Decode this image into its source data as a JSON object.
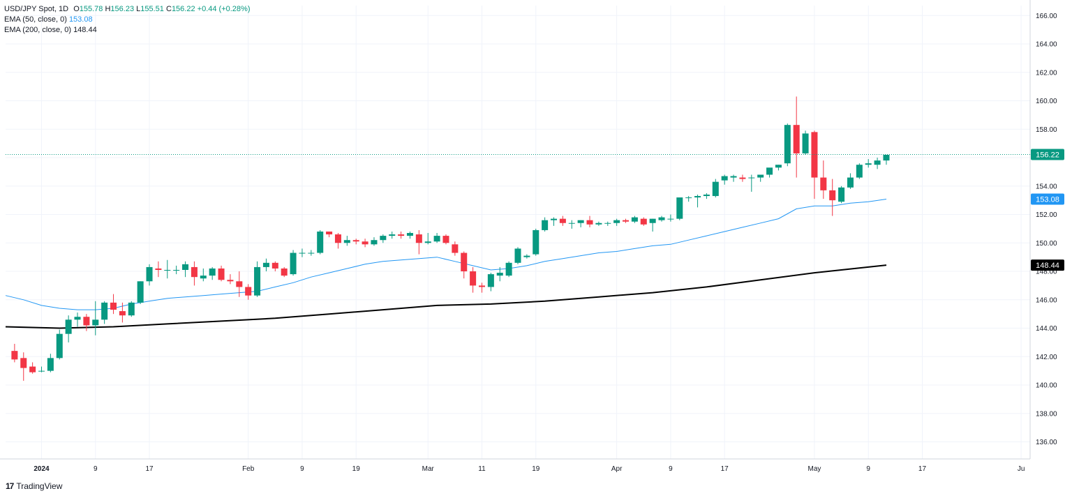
{
  "header": {
    "symbol": "USD/JPY Spot, 1D",
    "o_label": "O",
    "o": "155.78",
    "h_label": "H",
    "h": "156.23",
    "l_label": "L",
    "l": "155.51",
    "c_label": "C",
    "c": "156.22",
    "change": "+0.44 (+0.28%)"
  },
  "indicators": {
    "ema50_label": "EMA (50, close, 0)",
    "ema50_value": "153.08",
    "ema200_label": "EMA (200, close, 0)",
    "ema200_value": "148.44"
  },
  "branding": {
    "name": "TradingView",
    "mark": "17"
  },
  "colors": {
    "up": "#089981",
    "down": "#f23645",
    "ema50": "#2196f3",
    "ema200": "#000000",
    "grid": "#f0f3fa"
  },
  "chart_data": {
    "type": "candlestick",
    "title": "USD/JPY Spot, 1D",
    "ylim": [
      134.8,
      166.7
    ],
    "y_ticks": [
      "136.00",
      "138.00",
      "140.00",
      "142.00",
      "144.00",
      "146.00",
      "148.00",
      "150.00",
      "152.00",
      "154.00",
      "156.00",
      "158.00",
      "160.00",
      "162.00",
      "164.00",
      "166.00"
    ],
    "x_ticks": [
      {
        "label": "2024",
        "x": 44,
        "bold": true
      },
      {
        "label": "9",
        "x": 50
      },
      {
        "label": "17",
        "x": 56
      },
      {
        "label": "Feb",
        "x": 67
      },
      {
        "label": "9",
        "x": 73
      },
      {
        "label": "19",
        "x": 79
      },
      {
        "label": "Mar",
        "x": 87
      },
      {
        "label": "11",
        "x": 93
      },
      {
        "label": "19",
        "x": 99
      },
      {
        "label": "Apr",
        "x": 108
      },
      {
        "label": "9",
        "x": 114
      },
      {
        "label": "17",
        "x": 120
      },
      {
        "label": "May",
        "x": 130
      },
      {
        "label": "9",
        "x": 136
      },
      {
        "label": "17",
        "x": 142
      },
      {
        "label": "Ju",
        "x": 153
      }
    ],
    "last_price": "156.22",
    "ema50_last": "153.08",
    "ema200_last": "148.44",
    "candles": [
      {
        "x": 41,
        "o": 142.4,
        "h": 142.9,
        "l": 141.6,
        "c": 141.8
      },
      {
        "x": 42,
        "o": 141.9,
        "h": 142.3,
        "l": 140.3,
        "c": 141.2
      },
      {
        "x": 43,
        "o": 141.3,
        "h": 141.6,
        "l": 140.8,
        "c": 140.9
      },
      {
        "x": 44,
        "o": 141.0,
        "h": 141.3,
        "l": 140.9,
        "c": 141.0
      },
      {
        "x": 45,
        "o": 141.0,
        "h": 142.2,
        "l": 140.9,
        "c": 141.9
      },
      {
        "x": 46,
        "o": 141.9,
        "h": 143.9,
        "l": 141.8,
        "c": 143.6
      },
      {
        "x": 47,
        "o": 143.6,
        "h": 144.9,
        "l": 143.0,
        "c": 144.6
      },
      {
        "x": 48,
        "o": 144.6,
        "h": 145.1,
        "l": 144.1,
        "c": 144.8
      },
      {
        "x": 49,
        "o": 144.8,
        "h": 145.0,
        "l": 143.8,
        "c": 144.2
      },
      {
        "x": 50,
        "o": 144.2,
        "h": 145.9,
        "l": 143.5,
        "c": 144.6
      },
      {
        "x": 51,
        "o": 144.6,
        "h": 145.9,
        "l": 144.3,
        "c": 145.8
      },
      {
        "x": 52,
        "o": 145.8,
        "h": 146.4,
        "l": 145.0,
        "c": 145.3
      },
      {
        "x": 53,
        "o": 145.2,
        "h": 145.8,
        "l": 144.4,
        "c": 144.9
      },
      {
        "x": 54,
        "o": 144.9,
        "h": 145.9,
        "l": 144.8,
        "c": 145.8
      },
      {
        "x": 55,
        "o": 145.8,
        "h": 147.3,
        "l": 145.7,
        "c": 147.3
      },
      {
        "x": 56,
        "o": 147.3,
        "h": 148.5,
        "l": 147.0,
        "c": 148.3
      },
      {
        "x": 57,
        "o": 148.2,
        "h": 148.7,
        "l": 147.6,
        "c": 148.1
      },
      {
        "x": 58,
        "o": 148.1,
        "h": 148.8,
        "l": 147.5,
        "c": 148.1
      },
      {
        "x": 59,
        "o": 148.1,
        "h": 148.4,
        "l": 147.8,
        "c": 148.1
      },
      {
        "x": 60,
        "o": 148.1,
        "h": 148.7,
        "l": 147.6,
        "c": 148.5
      },
      {
        "x": 61,
        "o": 148.3,
        "h": 148.7,
        "l": 147.0,
        "c": 147.6
      },
      {
        "x": 62,
        "o": 147.5,
        "h": 148.2,
        "l": 147.3,
        "c": 147.7
      },
      {
        "x": 63,
        "o": 147.7,
        "h": 148.3,
        "l": 147.4,
        "c": 148.2
      },
      {
        "x": 64,
        "o": 148.2,
        "h": 148.4,
        "l": 147.3,
        "c": 147.4
      },
      {
        "x": 65,
        "o": 147.4,
        "h": 147.8,
        "l": 147.1,
        "c": 147.3
      },
      {
        "x": 66,
        "o": 147.3,
        "h": 148.0,
        "l": 146.2,
        "c": 146.9
      },
      {
        "x": 67,
        "o": 146.9,
        "h": 147.1,
        "l": 146.0,
        "c": 146.3
      },
      {
        "x": 68,
        "o": 146.3,
        "h": 148.7,
        "l": 146.2,
        "c": 148.3
      },
      {
        "x": 69,
        "o": 148.3,
        "h": 148.9,
        "l": 148.0,
        "c": 148.6
      },
      {
        "x": 70,
        "o": 148.6,
        "h": 148.7,
        "l": 148.0,
        "c": 148.2
      },
      {
        "x": 71,
        "o": 148.2,
        "h": 148.3,
        "l": 147.6,
        "c": 147.7
      },
      {
        "x": 72,
        "o": 147.8,
        "h": 149.5,
        "l": 147.7,
        "c": 149.3
      },
      {
        "x": 73,
        "o": 149.3,
        "h": 149.6,
        "l": 149.0,
        "c": 149.3
      },
      {
        "x": 74,
        "o": 149.3,
        "h": 149.5,
        "l": 149.1,
        "c": 149.3
      },
      {
        "x": 75,
        "o": 149.3,
        "h": 150.9,
        "l": 149.2,
        "c": 150.8
      },
      {
        "x": 76,
        "o": 150.8,
        "h": 150.8,
        "l": 150.4,
        "c": 150.6
      },
      {
        "x": 77,
        "o": 150.6,
        "h": 150.7,
        "l": 149.6,
        "c": 150.0
      },
      {
        "x": 78,
        "o": 150.0,
        "h": 150.5,
        "l": 149.8,
        "c": 150.2
      },
      {
        "x": 79,
        "o": 150.2,
        "h": 150.3,
        "l": 149.9,
        "c": 150.1
      },
      {
        "x": 80,
        "o": 150.1,
        "h": 150.3,
        "l": 149.7,
        "c": 149.9
      },
      {
        "x": 81,
        "o": 149.9,
        "h": 150.4,
        "l": 149.8,
        "c": 150.2
      },
      {
        "x": 82,
        "o": 150.2,
        "h": 150.6,
        "l": 150.0,
        "c": 150.5
      },
      {
        "x": 83,
        "o": 150.5,
        "h": 150.8,
        "l": 150.3,
        "c": 150.6
      },
      {
        "x": 84,
        "o": 150.6,
        "h": 150.8,
        "l": 150.3,
        "c": 150.5
      },
      {
        "x": 85,
        "o": 150.5,
        "h": 150.8,
        "l": 150.3,
        "c": 150.7
      },
      {
        "x": 86,
        "o": 150.6,
        "h": 150.9,
        "l": 149.2,
        "c": 150.0
      },
      {
        "x": 87,
        "o": 150.0,
        "h": 150.7,
        "l": 149.9,
        "c": 150.1
      },
      {
        "x": 88,
        "o": 150.1,
        "h": 150.7,
        "l": 150.0,
        "c": 150.5
      },
      {
        "x": 89,
        "o": 150.5,
        "h": 150.6,
        "l": 149.9,
        "c": 150.0
      },
      {
        "x": 90,
        "o": 149.9,
        "h": 150.1,
        "l": 149.1,
        "c": 149.3
      },
      {
        "x": 91,
        "o": 149.3,
        "h": 149.4,
        "l": 147.5,
        "c": 148.0
      },
      {
        "x": 92,
        "o": 148.0,
        "h": 148.3,
        "l": 146.5,
        "c": 147.0
      },
      {
        "x": 93,
        "o": 147.0,
        "h": 147.2,
        "l": 146.5,
        "c": 146.9
      },
      {
        "x": 94,
        "o": 146.9,
        "h": 147.9,
        "l": 146.6,
        "c": 147.8
      },
      {
        "x": 95,
        "o": 147.7,
        "h": 148.3,
        "l": 147.3,
        "c": 147.9
      },
      {
        "x": 96,
        "o": 147.7,
        "h": 148.7,
        "l": 147.6,
        "c": 148.6
      },
      {
        "x": 97,
        "o": 148.6,
        "h": 149.7,
        "l": 148.5,
        "c": 149.6
      },
      {
        "x": 98,
        "o": 149.0,
        "h": 149.2,
        "l": 148.9,
        "c": 149.1
      },
      {
        "x": 99,
        "o": 149.2,
        "h": 151.0,
        "l": 149.1,
        "c": 150.9
      },
      {
        "x": 100,
        "o": 150.9,
        "h": 151.8,
        "l": 150.8,
        "c": 151.6
      },
      {
        "x": 101,
        "o": 151.6,
        "h": 151.8,
        "l": 151.2,
        "c": 151.7
      },
      {
        "x": 102,
        "o": 151.7,
        "h": 151.9,
        "l": 151.2,
        "c": 151.4
      },
      {
        "x": 103,
        "o": 151.4,
        "h": 151.6,
        "l": 151.0,
        "c": 151.4
      },
      {
        "x": 104,
        "o": 151.4,
        "h": 151.6,
        "l": 151.1,
        "c": 151.6
      },
      {
        "x": 105,
        "o": 151.6,
        "h": 151.9,
        "l": 151.1,
        "c": 151.3
      },
      {
        "x": 106,
        "o": 151.3,
        "h": 151.5,
        "l": 151.2,
        "c": 151.4
      },
      {
        "x": 107,
        "o": 151.4,
        "h": 151.5,
        "l": 151.2,
        "c": 151.4
      },
      {
        "x": 108,
        "o": 151.4,
        "h": 151.7,
        "l": 151.2,
        "c": 151.6
      },
      {
        "x": 109,
        "o": 151.6,
        "h": 151.7,
        "l": 151.4,
        "c": 151.5
      },
      {
        "x": 110,
        "o": 151.5,
        "h": 151.9,
        "l": 151.4,
        "c": 151.8
      },
      {
        "x": 111,
        "o": 151.7,
        "h": 151.8,
        "l": 151.2,
        "c": 151.3
      },
      {
        "x": 112,
        "o": 151.4,
        "h": 151.7,
        "l": 150.8,
        "c": 151.7
      },
      {
        "x": 113,
        "o": 151.6,
        "h": 151.9,
        "l": 151.5,
        "c": 151.8
      },
      {
        "x": 114,
        "o": 151.7,
        "h": 152.0,
        "l": 151.5,
        "c": 151.7
      },
      {
        "x": 115,
        "o": 151.7,
        "h": 153.1,
        "l": 151.6,
        "c": 153.2
      },
      {
        "x": 116,
        "o": 153.2,
        "h": 153.3,
        "l": 152.9,
        "c": 153.2
      },
      {
        "x": 117,
        "o": 153.2,
        "h": 153.4,
        "l": 152.5,
        "c": 153.3
      },
      {
        "x": 118,
        "o": 153.3,
        "h": 153.5,
        "l": 153.1,
        "c": 153.4
      },
      {
        "x": 119,
        "o": 153.3,
        "h": 154.5,
        "l": 153.2,
        "c": 154.3
      },
      {
        "x": 120,
        "o": 154.4,
        "h": 154.8,
        "l": 154.1,
        "c": 154.7
      },
      {
        "x": 121,
        "o": 154.6,
        "h": 154.8,
        "l": 154.3,
        "c": 154.7
      },
      {
        "x": 122,
        "o": 154.6,
        "h": 154.8,
        "l": 154.3,
        "c": 154.5
      },
      {
        "x": 123,
        "o": 154.6,
        "h": 154.8,
        "l": 153.6,
        "c": 154.6
      },
      {
        "x": 124,
        "o": 154.6,
        "h": 154.7,
        "l": 154.3,
        "c": 154.8
      },
      {
        "x": 125,
        "o": 154.8,
        "h": 155.2,
        "l": 154.6,
        "c": 155.3
      },
      {
        "x": 126,
        "o": 155.3,
        "h": 155.5,
        "l": 155.1,
        "c": 155.5
      },
      {
        "x": 127,
        "o": 155.6,
        "h": 158.4,
        "l": 155.4,
        "c": 158.3
      },
      {
        "x": 128,
        "o": 158.3,
        "h": 160.3,
        "l": 154.6,
        "c": 156.3
      },
      {
        "x": 129,
        "o": 156.3,
        "h": 157.9,
        "l": 156.2,
        "c": 157.7
      },
      {
        "x": 130,
        "o": 157.8,
        "h": 157.9,
        "l": 153.1,
        "c": 154.6
      },
      {
        "x": 131,
        "o": 154.6,
        "h": 155.8,
        "l": 153.1,
        "c": 153.7
      },
      {
        "x": 132,
        "o": 153.7,
        "h": 154.5,
        "l": 151.9,
        "c": 153.0
      },
      {
        "x": 133,
        "o": 152.9,
        "h": 154.0,
        "l": 152.8,
        "c": 153.9
      },
      {
        "x": 134,
        "o": 153.9,
        "h": 154.9,
        "l": 153.8,
        "c": 154.6
      },
      {
        "x": 135,
        "o": 154.6,
        "h": 155.6,
        "l": 154.5,
        "c": 155.5
      },
      {
        "x": 136,
        "o": 155.5,
        "h": 155.9,
        "l": 155.3,
        "c": 155.6
      },
      {
        "x": 137,
        "o": 155.5,
        "h": 156.0,
        "l": 155.2,
        "c": 155.8
      },
      {
        "x": 138,
        "o": 155.8,
        "h": 156.2,
        "l": 155.5,
        "c": 156.2
      }
    ],
    "series": [
      {
        "name": "EMA (50, close, 0)",
        "color": "#2196f3",
        "x": [
          40,
          42,
          44,
          46,
          48,
          50,
          52,
          54,
          56,
          58,
          60,
          62,
          64,
          66,
          68,
          70,
          72,
          74,
          76,
          78,
          80,
          82,
          84,
          86,
          88,
          90,
          92,
          94,
          96,
          98,
          100,
          102,
          104,
          106,
          108,
          110,
          112,
          114,
          116,
          118,
          120,
          122,
          124,
          126,
          128,
          130,
          132,
          134,
          136,
          138
        ],
        "values": [
          146.3,
          146.0,
          145.6,
          145.4,
          145.3,
          145.3,
          145.4,
          145.7,
          145.9,
          146.1,
          146.2,
          146.3,
          146.4,
          146.5,
          146.6,
          146.9,
          147.2,
          147.6,
          147.9,
          148.2,
          148.5,
          148.7,
          148.8,
          148.9,
          149.0,
          148.7,
          148.4,
          148.1,
          148.2,
          148.4,
          148.7,
          148.9,
          149.1,
          149.3,
          149.4,
          149.6,
          149.8,
          149.9,
          150.2,
          150.5,
          150.8,
          151.1,
          151.4,
          151.7,
          152.4,
          152.6,
          152.6,
          152.8,
          152.9,
          153.08
        ]
      },
      {
        "name": "EMA (200, close, 0)",
        "color": "#000000",
        "x": [
          40,
          46,
          52,
          58,
          64,
          70,
          76,
          82,
          88,
          94,
          100,
          106,
          112,
          118,
          124,
          130,
          138
        ],
        "values": [
          144.1,
          144.0,
          144.1,
          144.3,
          144.5,
          144.7,
          145.0,
          145.3,
          145.6,
          145.7,
          145.9,
          146.2,
          146.5,
          146.9,
          147.4,
          147.9,
          148.44
        ]
      }
    ]
  }
}
